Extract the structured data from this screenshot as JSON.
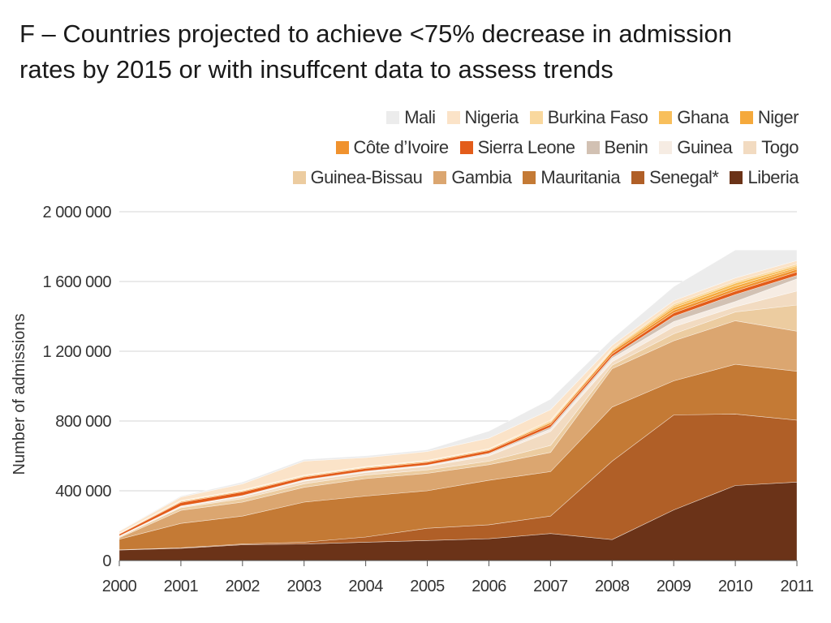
{
  "chart_data": {
    "type": "area",
    "stacked": true,
    "title": "F – Countries projected to achieve <75% decrease in admission rates by 2015 or with insuffcent data to assess trends",
    "title_lines": [
      "F – Countries projected to achieve <75% decrease in admission",
      "rates by 2015 or with insuffcent data to assess trends"
    ],
    "ylabel": "Number of admissions",
    "xlabel": "",
    "ylim": [
      0,
      2000000
    ],
    "yticks": [
      0,
      400000,
      800000,
      1200000,
      1600000,
      2000000
    ],
    "ytick_labels": [
      "0",
      "400 000",
      "800 000",
      "1 200 000",
      "1 600 000",
      "2 000 000"
    ],
    "x": [
      "2000",
      "2001",
      "2002",
      "2003",
      "2004",
      "2005",
      "2006",
      "2007",
      "2008",
      "2009",
      "2010",
      "2011"
    ],
    "grid": "horizontal",
    "legend_position": "top-right",
    "legend_rows": [
      [
        "Mali",
        "Nigeria",
        "Burkina Faso",
        "Ghana",
        "Niger"
      ],
      [
        "Côte d’Ivoire",
        "Sierra Leone",
        "Benin",
        "Guinea",
        "Togo"
      ],
      [
        "Guinea-Bissau",
        "Gambia",
        "Mauritania",
        "Senegal*",
        "Liberia"
      ]
    ],
    "series": [
      {
        "name": "Liberia",
        "color": "#6b3318",
        "values": [
          60000,
          70000,
          90000,
          95000,
          105000,
          115000,
          125000,
          155000,
          120000,
          290000,
          430000,
          450000
        ]
      },
      {
        "name": "Senegal*",
        "color": "#b05f27",
        "values": [
          2000,
          3000,
          5000,
          10000,
          30000,
          70000,
          80000,
          100000,
          450000,
          545000,
          410000,
          355000
        ]
      },
      {
        "name": "Mauritania",
        "color": "#c47a35",
        "values": [
          60000,
          140000,
          160000,
          230000,
          235000,
          215000,
          255000,
          255000,
          310000,
          195000,
          285000,
          280000
        ]
      },
      {
        "name": "Gambia",
        "color": "#dba670",
        "values": [
          8000,
          75000,
          80000,
          85000,
          100000,
          100000,
          90000,
          110000,
          220000,
          230000,
          250000,
          230000
        ]
      },
      {
        "name": "Guinea-Bissau",
        "color": "#eccca0",
        "values": [
          5000,
          15000,
          20000,
          20000,
          20000,
          20000,
          20000,
          40000,
          20000,
          40000,
          50000,
          150000
        ]
      },
      {
        "name": "Togo",
        "color": "#f2dbc1",
        "values": [
          3000,
          5000,
          10000,
          15000,
          15000,
          20000,
          30000,
          80000,
          20000,
          40000,
          30000,
          80000
        ]
      },
      {
        "name": "Guinea",
        "color": "#f6ece3",
        "values": [
          2000,
          3000,
          5000,
          5000,
          5000,
          5000,
          10000,
          15000,
          20000,
          30000,
          30000,
          70000
        ]
      },
      {
        "name": "Benin",
        "color": "#d2c1b3",
        "values": [
          1000,
          2000,
          3000,
          3000,
          3000,
          3000,
          5000,
          10000,
          10000,
          30000,
          40000,
          20000
        ]
      },
      {
        "name": "Sierra Leone",
        "color": "#e35c1a",
        "values": [
          10000,
          20000,
          20000,
          15000,
          15000,
          15000,
          15000,
          15000,
          15000,
          20000,
          20000,
          20000
        ]
      },
      {
        "name": "Côte d’Ivoire",
        "color": "#f0922e",
        "values": [
          3000,
          5000,
          5000,
          5000,
          5000,
          5000,
          5000,
          10000,
          15000,
          15000,
          15000,
          15000
        ]
      },
      {
        "name": "Niger",
        "color": "#f5a93c",
        "values": [
          1000,
          2000,
          2000,
          2000,
          2000,
          2000,
          2000,
          5000,
          5000,
          15000,
          15000,
          10000
        ]
      },
      {
        "name": "Ghana",
        "color": "#f8bf5c",
        "values": [
          1000,
          2000,
          2000,
          2000,
          2000,
          2000,
          2000,
          5000,
          5000,
          10000,
          15000,
          10000
        ]
      },
      {
        "name": "Burkina Faso",
        "color": "#f9d89e",
        "values": [
          1000,
          2000,
          3000,
          3000,
          3000,
          3000,
          3000,
          5000,
          5000,
          10000,
          10000,
          10000
        ]
      },
      {
        "name": "Nigeria",
        "color": "#fbe3c8",
        "values": [
          10000,
          20000,
          35000,
          80000,
          50000,
          50000,
          60000,
          60000,
          20000,
          20000,
          20000,
          20000
        ]
      },
      {
        "name": "Mali",
        "color": "#ececec",
        "values": [
          3000,
          6000,
          10000,
          10000,
          10000,
          10000,
          40000,
          60000,
          35000,
          80000,
          160000,
          60000
        ]
      }
    ]
  }
}
